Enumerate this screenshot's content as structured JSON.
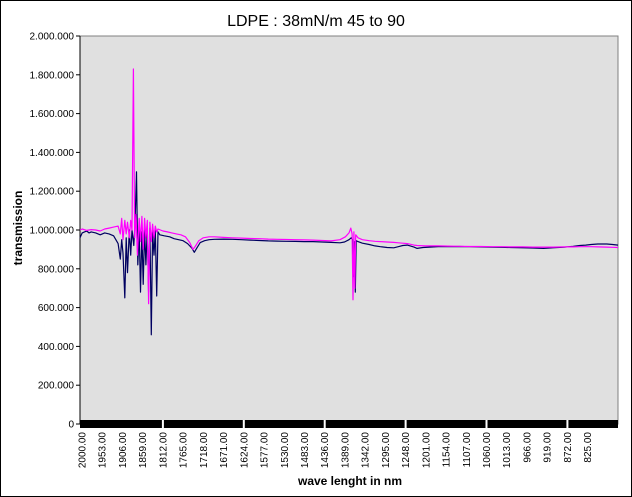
{
  "chart_data": {
    "type": "line",
    "title": "LDPE : 38mN/m 45 to 90",
    "xlabel": "wave lenght in nm",
    "ylabel": "transmission",
    "ylim": [
      0,
      2000
    ],
    "xlim": [
      2000,
      800
    ],
    "x_reversed": true,
    "y_ticks": [
      "0",
      "200.000",
      "400.000",
      "600.000",
      "800.000",
      "1.000.000",
      "1.200.000",
      "1.400.000",
      "1.600.000",
      "1.800.000",
      "2.000.000"
    ],
    "y_tick_values": [
      0,
      200,
      400,
      600,
      800,
      1000,
      1200,
      1400,
      1600,
      1800,
      2000
    ],
    "x_ticks": [
      "2000.00",
      "1953.00",
      "1906.00",
      "1859.00",
      "1812.00",
      "1765.00",
      "1718.00",
      "1671.00",
      "1624.00",
      "1577.00",
      "1530.00",
      "1483.00",
      "1436.00",
      "1389.00",
      "1342.00",
      "1295.00",
      "1248.00",
      "1201.00",
      "1154.00",
      "1107.00",
      "1060.00",
      "1013.00",
      "966.00",
      "919.00",
      "872.00",
      "825.00"
    ],
    "grid": false,
    "background": "#e0e0e0",
    "series": [
      {
        "color": "#000060",
        "points": [
          [
            2000,
            960
          ],
          [
            1995,
            985
          ],
          [
            1990,
            990
          ],
          [
            1985,
            995
          ],
          [
            1980,
            985
          ],
          [
            1975,
            990
          ],
          [
            1965,
            985
          ],
          [
            1955,
            975
          ],
          [
            1945,
            985
          ],
          [
            1935,
            980
          ],
          [
            1925,
            970
          ],
          [
            1915,
            930
          ],
          [
            1910,
            850
          ],
          [
            1907,
            950
          ],
          [
            1904,
            880
          ],
          [
            1900,
            650
          ],
          [
            1897,
            960
          ],
          [
            1894,
            780
          ],
          [
            1890,
            1000
          ],
          [
            1887,
            870
          ],
          [
            1884,
            1000
          ],
          [
            1880,
            920
          ],
          [
            1877,
            1040
          ],
          [
            1874,
            1300
          ],
          [
            1871,
            820
          ],
          [
            1868,
            1000
          ],
          [
            1865,
            680
          ],
          [
            1862,
            990
          ],
          [
            1859,
            720
          ],
          [
            1856,
            1000
          ],
          [
            1853,
            820
          ],
          [
            1850,
            1010
          ],
          [
            1847,
            680
          ],
          [
            1844,
            1010
          ],
          [
            1841,
            460
          ],
          [
            1838,
            990
          ],
          [
            1835,
            870
          ],
          [
            1832,
            1000
          ],
          [
            1829,
            660
          ],
          [
            1826,
            990
          ],
          [
            1822,
            975
          ],
          [
            1812,
            970
          ],
          [
            1800,
            965
          ],
          [
            1790,
            955
          ],
          [
            1780,
            950
          ],
          [
            1770,
            945
          ],
          [
            1760,
            930
          ],
          [
            1750,
            905
          ],
          [
            1745,
            885
          ],
          [
            1740,
            905
          ],
          [
            1732,
            935
          ],
          [
            1722,
            945
          ],
          [
            1712,
            950
          ],
          [
            1700,
            952
          ],
          [
            1680,
            953
          ],
          [
            1660,
            952
          ],
          [
            1640,
            950
          ],
          [
            1620,
            948
          ],
          [
            1600,
            946
          ],
          [
            1580,
            944
          ],
          [
            1560,
            943
          ],
          [
            1540,
            942
          ],
          [
            1520,
            941
          ],
          [
            1500,
            940
          ],
          [
            1480,
            940
          ],
          [
            1460,
            938
          ],
          [
            1440,
            936
          ],
          [
            1420,
            934
          ],
          [
            1410,
            938
          ],
          [
            1400,
            950
          ],
          [
            1395,
            960
          ],
          [
            1392,
            950
          ],
          [
            1390,
            760
          ],
          [
            1388,
            940
          ],
          [
            1386,
            680
          ],
          [
            1384,
            945
          ],
          [
            1380,
            940
          ],
          [
            1370,
            932
          ],
          [
            1355,
            925
          ],
          [
            1342,
            918
          ],
          [
            1330,
            914
          ],
          [
            1315,
            910
          ],
          [
            1300,
            908
          ],
          [
            1290,
            914
          ],
          [
            1280,
            920
          ],
          [
            1270,
            922
          ],
          [
            1255,
            912
          ],
          [
            1248,
            905
          ],
          [
            1235,
            910
          ],
          [
            1220,
            912
          ],
          [
            1201,
            914
          ],
          [
            1180,
            914
          ],
          [
            1154,
            915
          ],
          [
            1130,
            914
          ],
          [
            1107,
            913
          ],
          [
            1080,
            912
          ],
          [
            1060,
            911
          ],
          [
            1040,
            910
          ],
          [
            1013,
            908
          ],
          [
            990,
            907
          ],
          [
            966,
            905
          ],
          [
            945,
            908
          ],
          [
            919,
            912
          ],
          [
            900,
            916
          ],
          [
            885,
            920
          ],
          [
            872,
            922
          ],
          [
            860,
            925
          ],
          [
            845,
            928
          ],
          [
            825,
            928
          ],
          [
            812,
            925
          ],
          [
            800,
            922
          ]
        ]
      },
      {
        "color": "#ff00ff",
        "points": [
          [
            2000,
            1000
          ],
          [
            1995,
            1005
          ],
          [
            1985,
            998
          ],
          [
            1975,
            1002
          ],
          [
            1965,
            1000
          ],
          [
            1955,
            995
          ],
          [
            1945,
            1005
          ],
          [
            1935,
            1010
          ],
          [
            1925,
            1015
          ],
          [
            1915,
            1020
          ],
          [
            1910,
            980
          ],
          [
            1907,
            1060
          ],
          [
            1904,
            950
          ],
          [
            1900,
            1050
          ],
          [
            1897,
            980
          ],
          [
            1894,
            1040
          ],
          [
            1890,
            960
          ],
          [
            1887,
            1050
          ],
          [
            1884,
            1000
          ],
          [
            1881,
            1830
          ],
          [
            1878,
            960
          ],
          [
            1875,
            1080
          ],
          [
            1872,
            870
          ],
          [
            1868,
            1060
          ],
          [
            1865,
            940
          ],
          [
            1862,
            1070
          ],
          [
            1859,
            900
          ],
          [
            1856,
            1060
          ],
          [
            1853,
            960
          ],
          [
            1850,
            1050
          ],
          [
            1847,
            620
          ],
          [
            1844,
            1040
          ],
          [
            1841,
            940
          ],
          [
            1838,
            1030
          ],
          [
            1835,
            960
          ],
          [
            1832,
            1020
          ],
          [
            1829,
            990
          ],
          [
            1826,
            1005
          ],
          [
            1815,
            995
          ],
          [
            1805,
            990
          ],
          [
            1795,
            985
          ],
          [
            1785,
            980
          ],
          [
            1775,
            975
          ],
          [
            1765,
            965
          ],
          [
            1755,
            935
          ],
          [
            1748,
            900
          ],
          [
            1743,
            915
          ],
          [
            1735,
            945
          ],
          [
            1725,
            960
          ],
          [
            1712,
            965
          ],
          [
            1700,
            965
          ],
          [
            1680,
            962
          ],
          [
            1660,
            960
          ],
          [
            1640,
            958
          ],
          [
            1620,
            956
          ],
          [
            1600,
            955
          ],
          [
            1580,
            953
          ],
          [
            1560,
            952
          ],
          [
            1540,
            951
          ],
          [
            1520,
            950
          ],
          [
            1500,
            949
          ],
          [
            1480,
            948
          ],
          [
            1460,
            946
          ],
          [
            1440,
            944
          ],
          [
            1420,
            950
          ],
          [
            1408,
            965
          ],
          [
            1400,
            985
          ],
          [
            1396,
            1010
          ],
          [
            1393,
            980
          ],
          [
            1391,
            640
          ],
          [
            1389,
            990
          ],
          [
            1387,
            700
          ],
          [
            1385,
            975
          ],
          [
            1380,
            960
          ],
          [
            1370,
            950
          ],
          [
            1355,
            945
          ],
          [
            1342,
            942
          ],
          [
            1330,
            940
          ],
          [
            1315,
            938
          ],
          [
            1300,
            936
          ],
          [
            1290,
            934
          ],
          [
            1280,
            932
          ],
          [
            1270,
            930
          ],
          [
            1255,
            922
          ],
          [
            1248,
            920
          ],
          [
            1230,
            918
          ],
          [
            1201,
            918
          ],
          [
            1180,
            917
          ],
          [
            1154,
            916
          ],
          [
            1130,
            915
          ],
          [
            1107,
            915
          ],
          [
            1080,
            914
          ],
          [
            1060,
            914
          ],
          [
            1040,
            913
          ],
          [
            1013,
            913
          ],
          [
            990,
            912
          ],
          [
            966,
            912
          ],
          [
            945,
            912
          ],
          [
            919,
            913
          ],
          [
            900,
            913
          ],
          [
            885,
            914
          ],
          [
            872,
            914
          ],
          [
            860,
            914
          ],
          [
            845,
            913
          ],
          [
            825,
            912
          ],
          [
            812,
            911
          ],
          [
            800,
            910
          ]
        ]
      }
    ]
  }
}
